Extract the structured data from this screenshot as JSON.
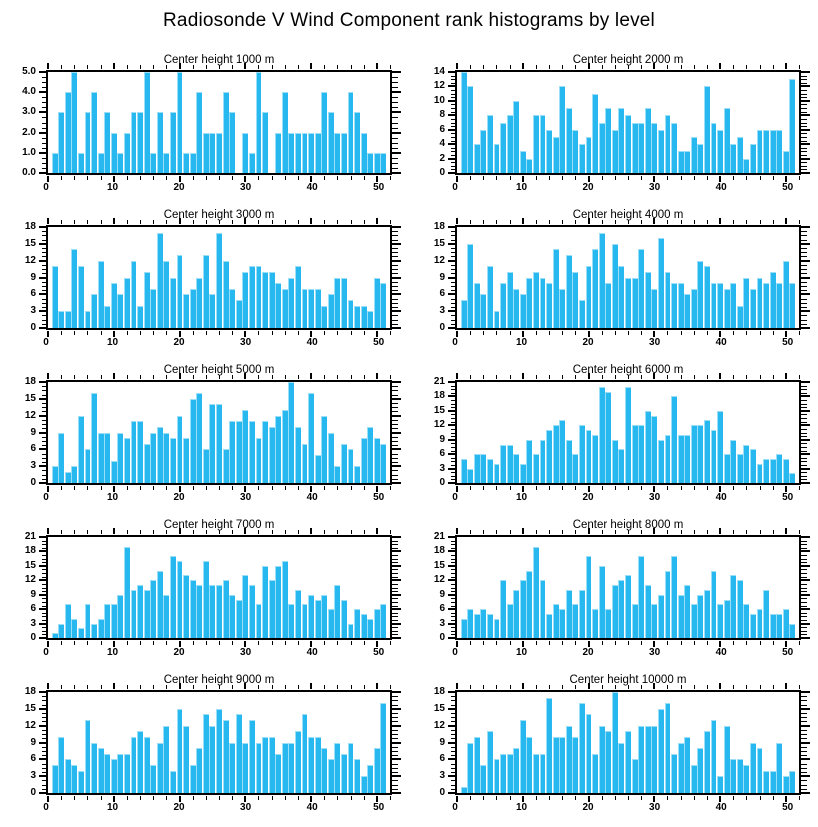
{
  "title": "Radiosonde V Wind Component rank histograms by level",
  "bar_fill_color": "#26b8ee",
  "bar_edge_color": "#9adff7",
  "axis_color": "#000000",
  "chart_data": [
    {
      "type": "bar",
      "title": "Center height 1000 m",
      "xlabel": "",
      "ylabel": "",
      "xlim": [
        0,
        52
      ],
      "ylim": [
        0,
        5
      ],
      "xticks": [
        0,
        10,
        20,
        30,
        40,
        50
      ],
      "xtick_minor_step": 2,
      "ytick_step": 1,
      "ytick_decimals": 1,
      "grid": false,
      "legend": false,
      "x": [
        1,
        2,
        3,
        4,
        5,
        6,
        7,
        8,
        9,
        10,
        11,
        12,
        13,
        14,
        15,
        16,
        17,
        18,
        19,
        20,
        21,
        22,
        23,
        24,
        25,
        26,
        27,
        28,
        29,
        30,
        31,
        32,
        33,
        34,
        35,
        36,
        37,
        38,
        39,
        40,
        41,
        42,
        43,
        44,
        45,
        46,
        47,
        48,
        49,
        50,
        51
      ],
      "values": [
        1,
        3,
        4,
        5,
        1,
        3,
        4,
        1,
        3,
        2,
        1,
        2,
        3,
        3,
        5,
        1,
        3,
        1,
        3,
        5,
        1,
        1,
        4,
        2,
        2,
        2,
        4,
        3,
        0,
        2,
        1,
        5,
        3,
        0,
        2,
        4,
        2,
        2,
        2,
        2,
        2,
        4,
        3,
        2,
        2,
        4,
        3,
        2,
        1,
        1,
        1
      ]
    },
    {
      "type": "bar",
      "title": "Center height 2000 m",
      "xlabel": "",
      "ylabel": "",
      "xlim": [
        0,
        52
      ],
      "ylim": [
        0,
        14
      ],
      "xticks": [
        0,
        10,
        20,
        30,
        40,
        50
      ],
      "xtick_minor_step": 2,
      "ytick_step": 2,
      "ytick_decimals": 0,
      "grid": false,
      "legend": false,
      "x": [
        1,
        2,
        3,
        4,
        5,
        6,
        7,
        8,
        9,
        10,
        11,
        12,
        13,
        14,
        15,
        16,
        17,
        18,
        19,
        20,
        21,
        22,
        23,
        24,
        25,
        26,
        27,
        28,
        29,
        30,
        31,
        32,
        33,
        34,
        35,
        36,
        37,
        38,
        39,
        40,
        41,
        42,
        43,
        44,
        45,
        46,
        47,
        48,
        49,
        50,
        51
      ],
      "values": [
        14,
        12,
        4,
        6,
        8,
        4,
        7,
        8,
        10,
        3,
        2,
        8,
        8,
        6,
        5,
        12,
        9,
        6,
        4,
        5,
        11,
        7,
        9,
        6,
        9,
        8,
        7,
        7,
        9,
        7,
        6,
        8,
        7,
        3,
        3,
        5,
        4,
        12,
        7,
        6,
        9,
        4,
        5,
        2,
        4,
        6,
        6,
        6,
        6,
        3,
        13
      ]
    },
    {
      "type": "bar",
      "title": "Center height 3000 m",
      "xlabel": "",
      "ylabel": "",
      "xlim": [
        0,
        52
      ],
      "ylim": [
        0,
        18
      ],
      "xticks": [
        0,
        10,
        20,
        30,
        40,
        50
      ],
      "xtick_minor_step": 2,
      "ytick_step": 3,
      "ytick_decimals": 0,
      "grid": false,
      "legend": false,
      "x": [
        1,
        2,
        3,
        4,
        5,
        6,
        7,
        8,
        9,
        10,
        11,
        12,
        13,
        14,
        15,
        16,
        17,
        18,
        19,
        20,
        21,
        22,
        23,
        24,
        25,
        26,
        27,
        28,
        29,
        30,
        31,
        32,
        33,
        34,
        35,
        36,
        37,
        38,
        39,
        40,
        41,
        42,
        43,
        44,
        45,
        46,
        47,
        48,
        49,
        50,
        51
      ],
      "values": [
        11,
        3,
        3,
        14,
        11,
        3,
        6,
        12,
        4,
        8,
        6,
        9,
        12,
        4,
        10,
        7,
        17,
        12,
        9,
        13,
        6,
        7,
        9,
        13,
        6,
        17,
        12,
        7,
        5,
        10,
        11,
        11,
        10,
        10,
        8,
        7,
        9,
        11,
        7,
        7,
        7,
        4,
        6,
        9,
        9,
        5,
        4,
        4,
        3,
        9,
        8
      ]
    },
    {
      "type": "bar",
      "title": "Center height 4000 m",
      "xlabel": "",
      "ylabel": "",
      "xlim": [
        0,
        52
      ],
      "ylim": [
        0,
        18
      ],
      "xticks": [
        0,
        10,
        20,
        30,
        40,
        50
      ],
      "xtick_minor_step": 2,
      "ytick_step": 3,
      "ytick_decimals": 0,
      "grid": false,
      "legend": false,
      "x": [
        1,
        2,
        3,
        4,
        5,
        6,
        7,
        8,
        9,
        10,
        11,
        12,
        13,
        14,
        15,
        16,
        17,
        18,
        19,
        20,
        21,
        22,
        23,
        24,
        25,
        26,
        27,
        28,
        29,
        30,
        31,
        32,
        33,
        34,
        35,
        36,
        37,
        38,
        39,
        40,
        41,
        42,
        43,
        44,
        45,
        46,
        47,
        48,
        49,
        50,
        51
      ],
      "values": [
        5,
        15,
        8,
        6,
        11,
        3,
        8,
        10,
        7,
        6,
        9,
        10,
        9,
        8,
        14,
        7,
        13,
        10,
        5,
        11,
        14,
        17,
        8,
        15,
        11,
        9,
        9,
        14,
        10,
        7,
        16,
        10,
        8,
        8,
        6,
        7,
        12,
        11,
        8,
        8,
        7,
        8,
        4,
        9,
        7,
        9,
        8,
        10,
        8,
        12,
        8
      ]
    },
    {
      "type": "bar",
      "title": "Center height 5000 m",
      "xlabel": "",
      "ylabel": "",
      "xlim": [
        0,
        52
      ],
      "ylim": [
        0,
        18
      ],
      "xticks": [
        0,
        10,
        20,
        30,
        40,
        50
      ],
      "xtick_minor_step": 2,
      "ytick_step": 3,
      "ytick_decimals": 0,
      "grid": false,
      "legend": false,
      "x": [
        1,
        2,
        3,
        4,
        5,
        6,
        7,
        8,
        9,
        10,
        11,
        12,
        13,
        14,
        15,
        16,
        17,
        18,
        19,
        20,
        21,
        22,
        23,
        24,
        25,
        26,
        27,
        28,
        29,
        30,
        31,
        32,
        33,
        34,
        35,
        36,
        37,
        38,
        39,
        40,
        41,
        42,
        43,
        44,
        45,
        46,
        47,
        48,
        49,
        50,
        51
      ],
      "values": [
        3,
        9,
        2,
        3,
        12,
        6,
        16,
        9,
        9,
        4,
        9,
        8,
        11,
        11,
        7,
        9,
        10,
        9,
        8,
        12,
        8,
        15,
        16,
        6,
        14,
        14,
        6,
        11,
        11,
        13,
        11,
        8,
        11,
        10,
        12,
        13,
        18,
        10,
        7,
        16,
        5,
        12,
        9,
        3,
        7,
        6,
        3,
        8,
        10,
        8,
        7
      ]
    },
    {
      "type": "bar",
      "title": "Center height 6000 m",
      "xlabel": "",
      "ylabel": "",
      "xlim": [
        0,
        52
      ],
      "ylim": [
        0,
        21
      ],
      "xticks": [
        0,
        10,
        20,
        30,
        40,
        50
      ],
      "xtick_minor_step": 2,
      "ytick_step": 3,
      "ytick_decimals": 0,
      "grid": false,
      "legend": false,
      "x": [
        1,
        2,
        3,
        4,
        5,
        6,
        7,
        8,
        9,
        10,
        11,
        12,
        13,
        14,
        15,
        16,
        17,
        18,
        19,
        20,
        21,
        22,
        23,
        24,
        25,
        26,
        27,
        28,
        29,
        30,
        31,
        32,
        33,
        34,
        35,
        36,
        37,
        38,
        39,
        40,
        41,
        42,
        43,
        44,
        45,
        46,
        47,
        48,
        49,
        50,
        51
      ],
      "values": [
        5,
        3,
        6,
        6,
        5,
        4,
        8,
        8,
        6,
        4,
        9,
        6,
        9,
        11,
        12,
        13,
        9,
        6,
        12,
        11,
        10,
        20,
        19,
        9,
        7,
        20,
        12,
        12,
        15,
        14,
        9,
        10,
        18,
        10,
        10,
        12,
        12,
        13,
        11,
        15,
        6,
        9,
        6,
        8,
        7,
        4,
        5,
        5,
        6,
        5,
        2
      ]
    },
    {
      "type": "bar",
      "title": "Center height 7000 m",
      "xlabel": "",
      "ylabel": "",
      "xlim": [
        0,
        52
      ],
      "ylim": [
        0,
        21
      ],
      "xticks": [
        0,
        10,
        20,
        30,
        40,
        50
      ],
      "xtick_minor_step": 2,
      "ytick_step": 3,
      "ytick_decimals": 0,
      "grid": false,
      "legend": false,
      "x": [
        1,
        2,
        3,
        4,
        5,
        6,
        7,
        8,
        9,
        10,
        11,
        12,
        13,
        14,
        15,
        16,
        17,
        18,
        19,
        20,
        21,
        22,
        23,
        24,
        25,
        26,
        27,
        28,
        29,
        30,
        31,
        32,
        33,
        34,
        35,
        36,
        37,
        38,
        39,
        40,
        41,
        42,
        43,
        44,
        45,
        46,
        47,
        48,
        49,
        50,
        51
      ],
      "values": [
        1,
        3,
        7,
        4,
        2,
        7,
        3,
        4,
        7,
        7,
        9,
        19,
        10,
        11,
        10,
        12,
        14,
        9,
        17,
        16,
        13,
        12,
        11,
        16,
        11,
        11,
        12,
        9,
        8,
        13,
        11,
        7,
        15,
        12,
        15,
        16,
        7,
        10,
        7,
        9,
        8,
        9,
        6,
        11,
        8,
        3,
        6,
        5,
        4,
        6,
        7
      ]
    },
    {
      "type": "bar",
      "title": "Center height 8000 m",
      "xlabel": "",
      "ylabel": "",
      "xlim": [
        0,
        52
      ],
      "ylim": [
        0,
        21
      ],
      "xticks": [
        0,
        10,
        20,
        30,
        40,
        50
      ],
      "xtick_minor_step": 2,
      "ytick_step": 3,
      "ytick_decimals": 0,
      "grid": false,
      "legend": false,
      "x": [
        1,
        2,
        3,
        4,
        5,
        6,
        7,
        8,
        9,
        10,
        11,
        12,
        13,
        14,
        15,
        16,
        17,
        18,
        19,
        20,
        21,
        22,
        23,
        24,
        25,
        26,
        27,
        28,
        29,
        30,
        31,
        32,
        33,
        34,
        35,
        36,
        37,
        38,
        39,
        40,
        41,
        42,
        43,
        44,
        45,
        46,
        47,
        48,
        49,
        50,
        51
      ],
      "values": [
        4,
        6,
        5,
        6,
        5,
        4,
        12,
        7,
        10,
        12,
        14,
        19,
        12,
        5,
        7,
        6,
        10,
        7,
        10,
        17,
        6,
        15,
        6,
        11,
        12,
        13,
        7,
        17,
        11,
        7,
        9,
        14,
        17,
        9,
        11,
        7,
        9,
        10,
        14,
        7,
        8,
        13,
        12,
        7,
        5,
        6,
        10,
        5,
        5,
        6,
        3
      ]
    },
    {
      "type": "bar",
      "title": "Center height 9000 m",
      "xlabel": "",
      "ylabel": "",
      "xlim": [
        0,
        52
      ],
      "ylim": [
        0,
        18
      ],
      "xticks": [
        0,
        10,
        20,
        30,
        40,
        50
      ],
      "xtick_minor_step": 2,
      "ytick_step": 3,
      "ytick_decimals": 0,
      "grid": false,
      "legend": false,
      "x": [
        1,
        2,
        3,
        4,
        5,
        6,
        7,
        8,
        9,
        10,
        11,
        12,
        13,
        14,
        15,
        16,
        17,
        18,
        19,
        20,
        21,
        22,
        23,
        24,
        25,
        26,
        27,
        28,
        29,
        30,
        31,
        32,
        33,
        34,
        35,
        36,
        37,
        38,
        39,
        40,
        41,
        42,
        43,
        44,
        45,
        46,
        47,
        48,
        49,
        50,
        51
      ],
      "values": [
        5,
        10,
        6,
        5,
        4,
        13,
        9,
        8,
        7,
        6,
        7,
        7,
        10,
        11,
        10,
        5,
        9,
        12,
        4,
        15,
        12,
        5,
        8,
        14,
        12,
        15,
        13,
        9,
        14,
        9,
        13,
        9,
        10,
        10,
        7,
        9,
        9,
        11,
        14,
        10,
        10,
        8,
        6,
        9,
        7,
        9,
        6,
        3,
        5,
        8,
        16
      ]
    },
    {
      "type": "bar",
      "title": "Center height 10000 m",
      "xlabel": "",
      "ylabel": "",
      "xlim": [
        0,
        52
      ],
      "ylim": [
        0,
        18
      ],
      "xticks": [
        0,
        10,
        20,
        30,
        40,
        50
      ],
      "xtick_minor_step": 2,
      "ytick_step": 3,
      "ytick_decimals": 0,
      "grid": false,
      "legend": false,
      "x": [
        1,
        2,
        3,
        4,
        5,
        6,
        7,
        8,
        9,
        10,
        11,
        12,
        13,
        14,
        15,
        16,
        17,
        18,
        19,
        20,
        21,
        22,
        23,
        24,
        25,
        26,
        27,
        28,
        29,
        30,
        31,
        32,
        33,
        34,
        35,
        36,
        37,
        38,
        39,
        40,
        41,
        42,
        43,
        44,
        45,
        46,
        47,
        48,
        49,
        50,
        51
      ],
      "values": [
        1,
        9,
        10,
        5,
        11,
        6,
        7,
        7,
        8,
        13,
        10,
        7,
        7,
        17,
        10,
        10,
        12,
        10,
        16,
        14,
        7,
        12,
        11,
        18,
        9,
        11,
        6,
        12,
        12,
        12,
        15,
        16,
        7,
        9,
        10,
        5,
        8,
        11,
        13,
        3,
        12,
        6,
        6,
        5,
        9,
        8,
        4,
        4,
        9,
        3,
        4
      ]
    }
  ]
}
